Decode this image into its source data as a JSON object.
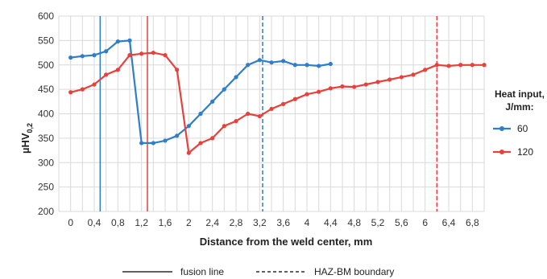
{
  "chart_data": {
    "type": "line",
    "xlabel": "Distance from the weld center, mm",
    "ylabel_main": "µHV",
    "ylabel_sub": "0,2",
    "ylim": [
      200,
      600
    ],
    "yticks": [
      200,
      250,
      300,
      350,
      400,
      450,
      500,
      550,
      600
    ],
    "xlim": [
      -0.2,
      7.0
    ],
    "xtick_labels": [
      "0",
      "0,4",
      "0,8",
      "1,2",
      "1,6",
      "2",
      "2,4",
      "2,8",
      "3,2",
      "3,6",
      "4",
      "4,4",
      "4,8",
      "5,2",
      "5,6",
      "6",
      "6,4",
      "6,8"
    ],
    "grid": true,
    "legend_title_line1": "Heat input,",
    "legend_title_line2": "J/mm:",
    "legend_position": "right",
    "series": [
      {
        "name": "60",
        "color": "#2e7ec9",
        "x": [
          0,
          0.2,
          0.4,
          0.6,
          0.8,
          1.0,
          1.2,
          1.4,
          1.6,
          1.8,
          2.0,
          2.2,
          2.4,
          2.6,
          2.8,
          3.0,
          3.2,
          3.4,
          3.6,
          3.8,
          4.0,
          4.2,
          4.4
        ],
        "values": [
          515,
          518,
          520,
          528,
          548,
          550,
          340,
          340,
          345,
          355,
          375,
          400,
          425,
          450,
          475,
          500,
          510,
          505,
          508,
          500,
          500,
          498,
          502
        ]
      },
      {
        "name": "120",
        "color": "#e8413b",
        "x": [
          0,
          0.2,
          0.4,
          0.6,
          0.8,
          1.0,
          1.2,
          1.4,
          1.6,
          1.8,
          2.0,
          2.2,
          2.4,
          2.6,
          2.8,
          3.0,
          3.2,
          3.4,
          3.6,
          3.8,
          4.0,
          4.2,
          4.4,
          4.6,
          4.8,
          5.0,
          5.2,
          5.4,
          5.6,
          5.8,
          6.0,
          6.2,
          6.4,
          6.6,
          6.8,
          7.0
        ],
        "values": [
          444,
          450,
          460,
          480,
          490,
          520,
          523,
          525,
          520,
          490,
          320,
          340,
          350,
          375,
          385,
          400,
          395,
          410,
          420,
          430,
          440,
          445,
          452,
          456,
          455,
          460,
          465,
          470,
          475,
          480,
          490,
          500,
          498,
          500,
          500,
          500
        ]
      }
    ],
    "reference_lines": [
      {
        "series": "60",
        "style": "solid",
        "x": 0.5
      },
      {
        "series": "120",
        "style": "solid",
        "x": 1.3
      },
      {
        "series": "60",
        "style": "dashed",
        "x": 3.25
      },
      {
        "series": "120",
        "style": "dashed",
        "x": 6.2
      }
    ],
    "line_legend": [
      {
        "label": "fusion line",
        "style": "solid",
        "color": "#000000"
      },
      {
        "label": "HAZ-BM boundary",
        "style": "dashed",
        "color": "#000000"
      }
    ]
  }
}
